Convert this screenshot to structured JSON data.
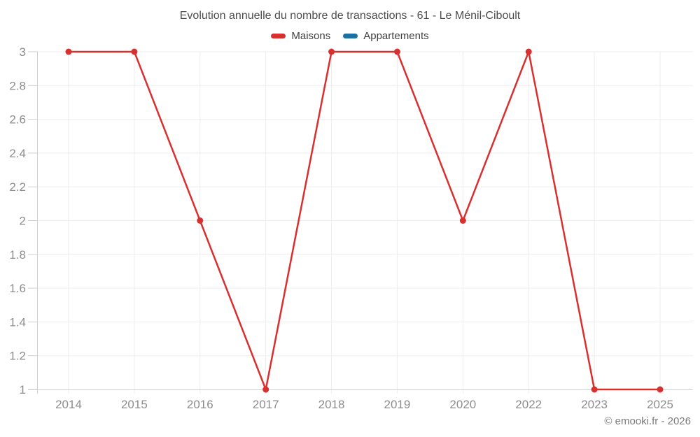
{
  "header": {
    "title": "Evolution annuelle du nombre de transactions - 61 - Le Ménil-Ciboult",
    "legend": [
      {
        "label": "Maisons",
        "color": "#d7302f"
      },
      {
        "label": "Appartements",
        "color": "#1d70a2"
      }
    ]
  },
  "footer": {
    "copyright": "© emooki.fr - 2026"
  },
  "chart_data": {
    "type": "line",
    "title": "Evolution annuelle du nombre de transactions - 61 - Le Ménil-Ciboult",
    "categories": [
      "2014",
      "2015",
      "2016",
      "2017",
      "2018",
      "2019",
      "2020",
      "2022",
      "2023",
      "2025"
    ],
    "series": [
      {
        "name": "Maisons",
        "color": "#d7302f",
        "values": [
          3,
          3,
          2,
          1,
          3,
          3,
          2,
          3,
          1,
          1
        ]
      },
      {
        "name": "Appartements",
        "color": "#1d70a2",
        "values": []
      }
    ],
    "xlabel": "",
    "ylabel": "",
    "ylim": [
      1,
      3
    ],
    "yticks": [
      1,
      1.2,
      1.4,
      1.6,
      1.8,
      2,
      2.2,
      2.4,
      2.6,
      2.8,
      3
    ],
    "ytick_labels": [
      "1",
      "1.2",
      "1.4",
      "1.6",
      "1.8",
      "2",
      "2.2",
      "2.4",
      "2.6",
      "2.8",
      "3"
    ],
    "grid": true,
    "legend_position": "top",
    "marker": "circle"
  },
  "style": {
    "grid_color": "#ededed",
    "axis_color": "#cfcfcf",
    "tick_label_color": "#8d8d8d",
    "title_color": "#4d4d4d",
    "legend_text_color": "#3f3f3f",
    "copyright_color": "#7b7b7b",
    "background": "#ffffff"
  }
}
